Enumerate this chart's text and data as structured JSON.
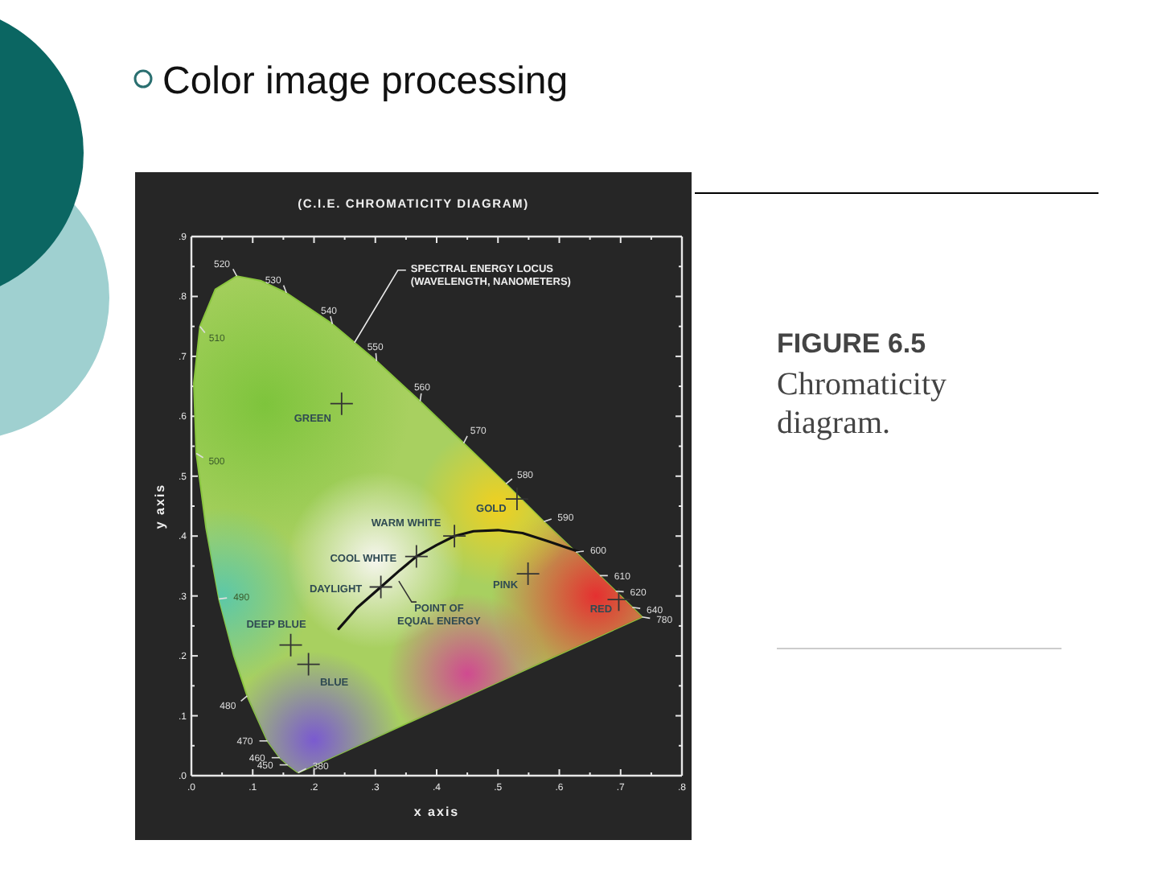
{
  "chart_data": {
    "type": "line",
    "title": "(C.I.E. CHROMATICITY DIAGRAM)",
    "xlabel": "x axis",
    "ylabel": "y axis",
    "xlim": [
      0,
      0.8
    ],
    "ylim": [
      0,
      0.9
    ],
    "xticks": [
      {
        "value": 0,
        "label": ".0"
      },
      {
        "value": 0.05,
        "label": null
      },
      {
        "value": 0.1,
        "label": ".1"
      },
      {
        "value": 0.15,
        "label": null
      },
      {
        "value": 0.2,
        "label": ".2"
      },
      {
        "value": 0.25,
        "label": null
      },
      {
        "value": 0.3,
        "label": ".3"
      },
      {
        "value": 0.35,
        "label": null
      },
      {
        "value": 0.4,
        "label": ".4"
      },
      {
        "value": 0.45,
        "label": null
      },
      {
        "value": 0.5,
        "label": ".5"
      },
      {
        "value": 0.55,
        "label": null
      },
      {
        "value": 0.6,
        "label": ".6"
      },
      {
        "value": 0.65,
        "label": null
      },
      {
        "value": 0.7,
        "label": ".7"
      },
      {
        "value": 0.75,
        "label": null
      },
      {
        "value": 0.8,
        "label": ".8"
      }
    ],
    "yticks": [
      {
        "value": 0,
        "label": ".0"
      },
      {
        "value": 0.05,
        "label": null
      },
      {
        "value": 0.1,
        "label": ".1"
      },
      {
        "value": 0.15,
        "label": null
      },
      {
        "value": 0.2,
        "label": ".2"
      },
      {
        "value": 0.25,
        "label": null
      },
      {
        "value": 0.3,
        "label": ".3"
      },
      {
        "value": 0.35,
        "label": null
      },
      {
        "value": 0.4,
        "label": ".4"
      },
      {
        "value": 0.45,
        "label": null
      },
      {
        "value": 0.5,
        "label": ".5"
      },
      {
        "value": 0.55,
        "label": null
      },
      {
        "value": 0.6,
        "label": ".6"
      },
      {
        "value": 0.65,
        "label": null
      },
      {
        "value": 0.7,
        "label": ".7"
      },
      {
        "value": 0.75,
        "label": null
      },
      {
        "value": 0.8,
        "label": ".8"
      },
      {
        "value": 0.85,
        "label": null
      },
      {
        "value": 0.9,
        "label": ".9"
      }
    ],
    "series": [
      {
        "type": "area",
        "color": "#8cc63f",
        "x": [
          0.174,
          0.157,
          0.144,
          0.124,
          0.091,
          0.069,
          0.045,
          0.024,
          0.008,
          0.004,
          0.014,
          0.039,
          0.074,
          0.114,
          0.155,
          0.23,
          0.302,
          0.373,
          0.444,
          0.513,
          0.575,
          0.627,
          0.666,
          0.692,
          0.719,
          0.735,
          0.174
        ],
        "values": [
          0.005,
          0.018,
          0.03,
          0.058,
          0.133,
          0.201,
          0.295,
          0.413,
          0.538,
          0.655,
          0.75,
          0.812,
          0.834,
          0.826,
          0.806,
          0.754,
          0.692,
          0.625,
          0.555,
          0.487,
          0.424,
          0.373,
          0.334,
          0.308,
          0.281,
          0.265,
          0.005
        ]
      },
      {
        "color": "#111111",
        "marker": "none",
        "x": [
          0.24,
          0.27,
          0.309,
          0.34,
          0.367,
          0.4,
          0.429,
          0.46,
          0.5,
          0.54,
          0.58,
          0.634
        ],
        "values": [
          0.245,
          0.28,
          0.315,
          0.343,
          0.366,
          0.385,
          0.4,
          0.408,
          0.41,
          0.405,
          0.392,
          0.373
        ]
      },
      {
        "type": "scatter",
        "color": "#333333",
        "marker": "cross",
        "x": [
          0.245,
          0.531,
          0.429,
          0.367,
          0.309,
          0.549,
          0.697,
          0.162,
          0.191
        ],
        "values": [
          0.621,
          0.462,
          0.4,
          0.366,
          0.315,
          0.337,
          0.294,
          0.218,
          0.186
        ],
        "value_labels": [
          "GREEN",
          "GOLD",
          "WARM WHITE",
          "COOL WHITE",
          "DAYLIGHT",
          "PINK",
          "RED",
          "DEEP BLUE",
          "BLUE"
        ]
      }
    ],
    "annotations": [
      {
        "text": "SPECTRAL ENERGY LOCUS (WAVELENGTH, NANOMETERS)",
        "x": 0.266,
        "y": 0.723
      },
      {
        "text": "POINT OF EQUAL ENERGY",
        "x": 0.333,
        "y": 0.333
      },
      {
        "text": "380",
        "x": 0.174,
        "y": 0.005
      },
      {
        "text": "450",
        "x": 0.157,
        "y": 0.018
      },
      {
        "text": "460",
        "x": 0.144,
        "y": 0.03
      },
      {
        "text": "470",
        "x": 0.124,
        "y": 0.058
      },
      {
        "text": "480",
        "x": 0.091,
        "y": 0.133
      },
      {
        "text": "490",
        "x": 0.045,
        "y": 0.295
      },
      {
        "text": "500",
        "x": 0.008,
        "y": 0.538
      },
      {
        "text": "510",
        "x": 0.014,
        "y": 0.75
      },
      {
        "text": "520",
        "x": 0.074,
        "y": 0.834
      },
      {
        "text": "530",
        "x": 0.155,
        "y": 0.806
      },
      {
        "text": "540",
        "x": 0.23,
        "y": 0.754
      },
      {
        "text": "550",
        "x": 0.302,
        "y": 0.692
      },
      {
        "text": "560",
        "x": 0.373,
        "y": 0.625
      },
      {
        "text": "570",
        "x": 0.444,
        "y": 0.555
      },
      {
        "text": "580",
        "x": 0.513,
        "y": 0.487
      },
      {
        "text": "590",
        "x": 0.575,
        "y": 0.424
      },
      {
        "text": "600",
        "x": 0.627,
        "y": 0.373
      },
      {
        "text": "610",
        "x": 0.666,
        "y": 0.334
      },
      {
        "text": "620",
        "x": 0.692,
        "y": 0.308
      },
      {
        "text": "640",
        "x": 0.719,
        "y": 0.281
      },
      {
        "text": "780",
        "x": 0.735,
        "y": 0.265
      },
      "Color image processing",
      "FIGURE 6.5",
      "Chromaticity diagram."
    ]
  }
}
